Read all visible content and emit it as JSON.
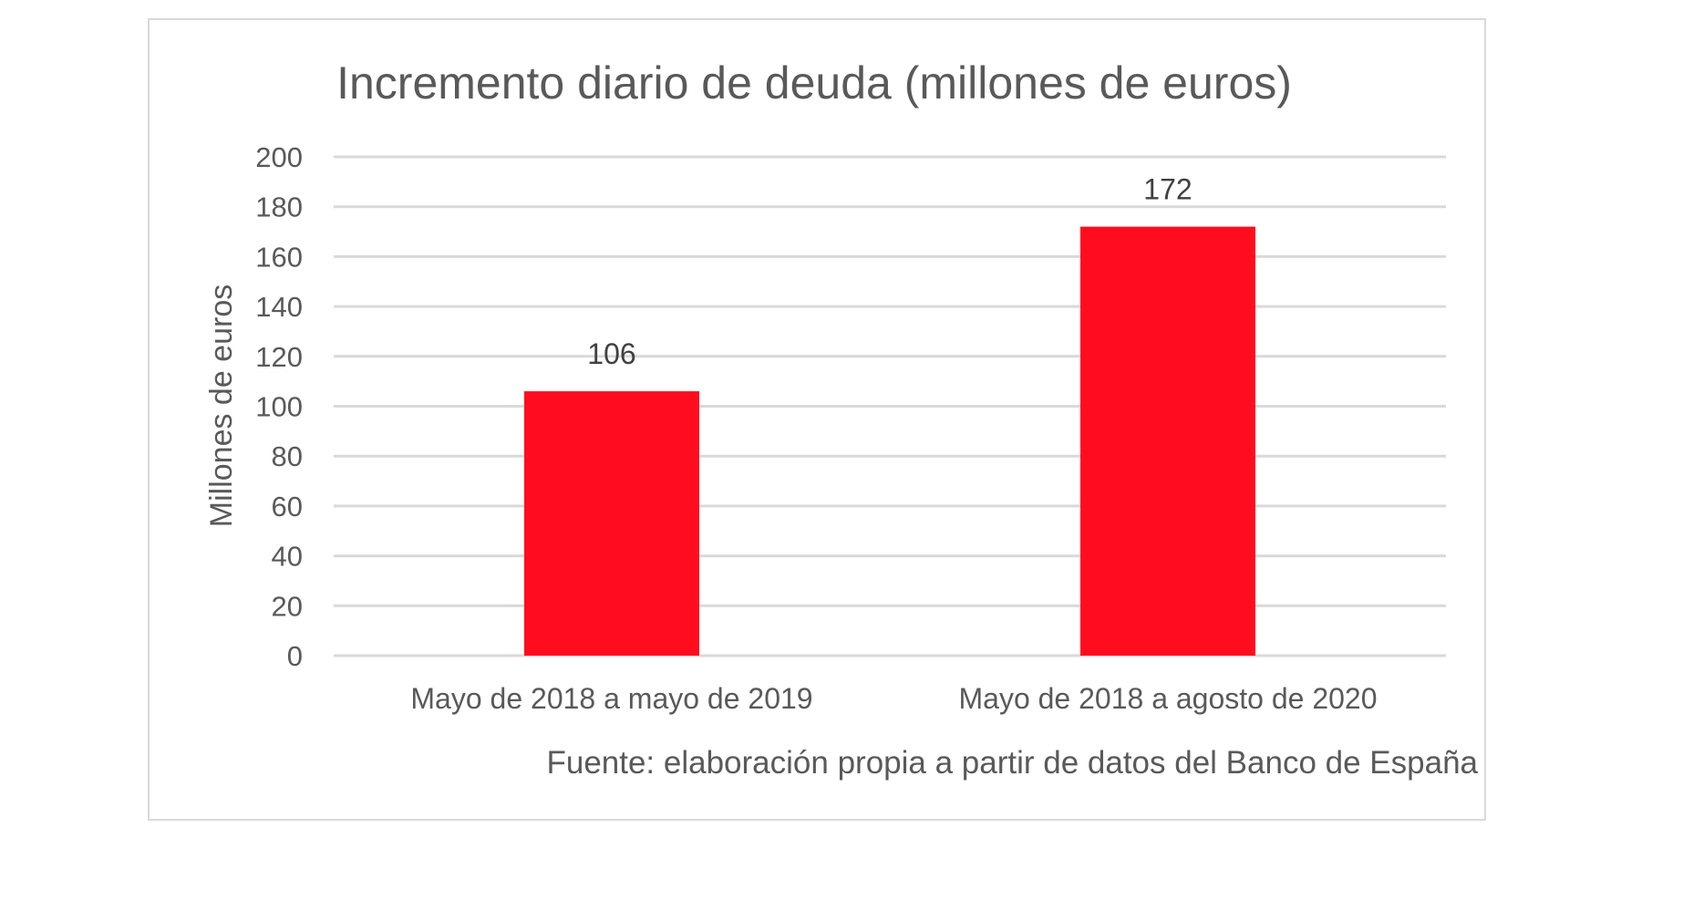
{
  "chart_data": {
    "type": "bar",
    "title": "Incremento diario de deuda (millones de euros)",
    "ylabel": "Millones de euros",
    "xlabel": "",
    "categories": [
      "Mayo de 2018 a mayo de 2019",
      "Mayo de 2018 a agosto de 2020"
    ],
    "values": [
      106,
      172
    ],
    "data_labels": [
      "106",
      "172"
    ],
    "ylim": [
      0,
      200
    ],
    "yticks": [
      0,
      20,
      40,
      60,
      80,
      100,
      120,
      140,
      160,
      180,
      200
    ],
    "grid": true,
    "legend": "none",
    "bar_color": "#ff0d1f",
    "source": "Fuente: elaboración propia a partir de datos del Banco de España"
  }
}
